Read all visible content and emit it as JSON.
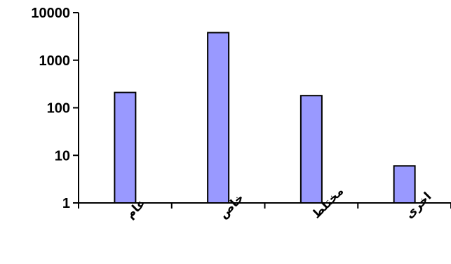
{
  "chart_data": {
    "type": "bar",
    "title": "",
    "xlabel": "",
    "ylabel": "",
    "y_scale": "log",
    "ylim": [
      1,
      10000
    ],
    "y_ticks": [
      1,
      10,
      100,
      1000,
      10000
    ],
    "y_tick_labels": [
      "1",
      "10",
      "100",
      "1000",
      "10000"
    ],
    "categories": [
      "عام",
      "خاص",
      "مختلط",
      "اخرى"
    ],
    "values": [
      210,
      3800,
      180,
      6
    ],
    "grid": false,
    "legend": "none",
    "bar_color": "#9999FF"
  }
}
